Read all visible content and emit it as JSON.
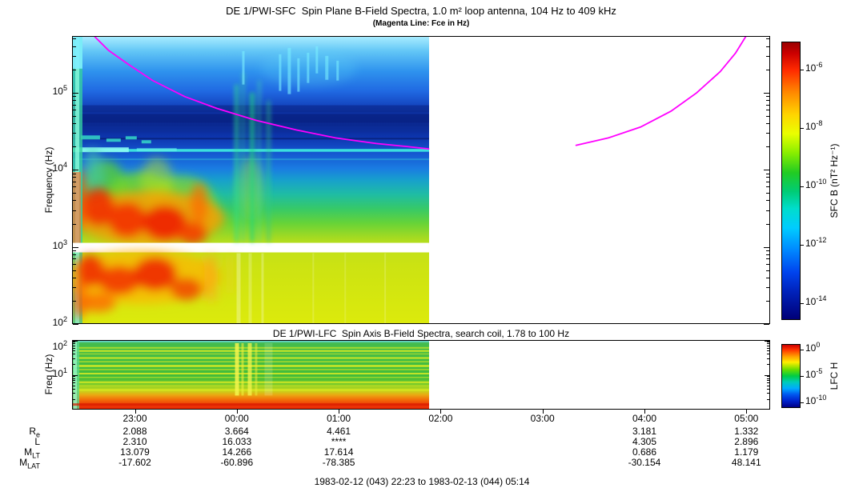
{
  "chart_data": [
    {
      "type": "heatmap",
      "panel": "SFC",
      "title": "DE 1/PWI-SFC  Spin Plane B-Field Spectra, 1.0 m² loop antenna, 104 Hz to 409 kHz",
      "subtitle": "(Magenta Line: Fce in Hz)",
      "ylabel": "Frequency (Hz)",
      "yscale": "log",
      "ylim_hz": [
        100,
        540000
      ],
      "ytick_exponents": [
        5,
        4,
        3,
        2
      ],
      "time_range_label": "1983-02-12 (043) 22:23 to 1983-02-13 (044) 05:14",
      "x_start": "1983-02-12 22:23",
      "x_end": "1983-02-13 05:14",
      "duration_min": 411,
      "xtick_labels": [
        "23:00",
        "00:00",
        "01:00",
        "02:00",
        "03:00",
        "04:00",
        "05:00"
      ],
      "xtick_minutes": [
        37,
        97,
        157,
        217,
        277,
        337,
        397
      ],
      "data_gap": {
        "start_minute": 210,
        "end_minute": 411
      },
      "colorbar": {
        "label": "SFC B (nT² Hz⁻¹)",
        "tick_exponents": [
          -6,
          -8,
          -10,
          -12,
          -14
        ],
        "colormap": "rainbow (red=high, dark blue=low)"
      },
      "fce_line": {
        "color": "#ff00ff",
        "label": "Fce in Hz",
        "segments": [
          [
            [
              13,
              540000
            ],
            [
              21,
              360000
            ],
            [
              33,
              235000
            ],
            [
              47,
              146000
            ],
            [
              66,
              90000
            ],
            [
              85,
              63000
            ],
            [
              108,
              44000
            ],
            [
              132,
              33000
            ],
            [
              155,
              26000
            ],
            [
              179,
              22000
            ],
            [
              198,
              20000
            ],
            [
              210,
              18700
            ]
          ],
          [
            [
              297,
              20800
            ],
            [
              316,
              26000
            ],
            [
              335,
              36000
            ],
            [
              353,
              58000
            ],
            [
              368,
              100000
            ],
            [
              382,
              190000
            ],
            [
              391,
              330000
            ],
            [
              397,
              540000
            ]
          ]
        ]
      },
      "features": [
        "Intense red/orange broadband emission between ~200 Hz and 4 kHz from 22:23 to ~00:30",
        "White horizontal receiver-band gap just below 1 kHz across the whole data interval",
        "Dark blue quiet bands near 30-60 kHz",
        "Narrow cyan emission line near 15 kHz",
        "Green/cyan vertical streaks near 00:00-00:20 and at the left edge",
        "Spectrogram data gap (white) from ~01:53 to 05:14; Fce line resumes ~03:20"
      ]
    },
    {
      "type": "heatmap",
      "panel": "LFC",
      "title": "DE 1/PWI-LFC  Spin Axis B-Field Spectra, search coil, 1.78 to 100 Hz",
      "ylabel": "Freq (Hz)",
      "yscale": "log",
      "ylim_hz": [
        1,
        100
      ],
      "ytick_exponents": [
        2,
        1
      ],
      "shares_time_axis": true,
      "colorbar": {
        "label": "LFC H",
        "tick_exponents": [
          0,
          -5,
          -10
        ],
        "colormap": "rainbow (red=high, dark blue=low)"
      },
      "features": [
        "Green background with yellow horizontal banding between ~2 and 60 Hz",
        "Intense orange/red band below ~2.5 Hz",
        "Bright yellow vertical streaks near 00:00",
        "Data gap (white) after ~01:53"
      ]
    }
  ],
  "ephemeris": {
    "rows": [
      {
        "label": "R",
        "sub": "e",
        "values": [
          "2.088",
          "3.664",
          "4.461",
          "",
          "",
          "3.181",
          "1.332"
        ]
      },
      {
        "label": "L",
        "sub": "",
        "values": [
          "2.310",
          "16.033",
          "****",
          "",
          "",
          "4.305",
          "2.896"
        ]
      },
      {
        "label": "M",
        "sub": "LT",
        "values": [
          "13.079",
          "14.266",
          "17.614",
          "",
          "",
          "0.686",
          "1.179"
        ]
      },
      {
        "label": "M",
        "sub": "LAT",
        "values": [
          "-17.602",
          "-60.896",
          "-78.385",
          "",
          "",
          "-30.154",
          "48.141"
        ]
      }
    ]
  }
}
